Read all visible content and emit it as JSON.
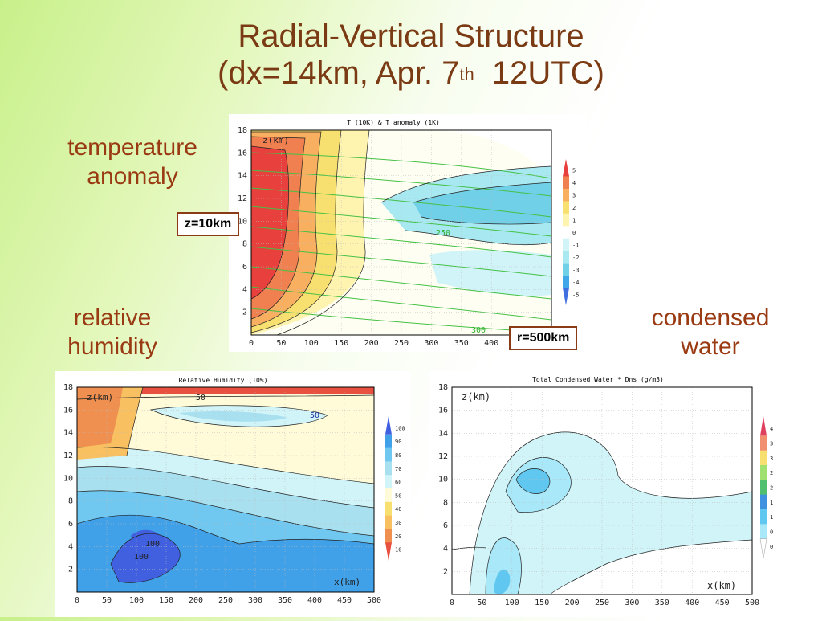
{
  "slide": {
    "title_line1": "Radial-Vertical Structure",
    "title_line2_pre": "(dx=14km, Apr. 7",
    "title_sup": "th",
    "title_line2_post": "  12UTC)",
    "label_temperature": "temperature\nanomaly",
    "label_rh": "relative\nhumidity",
    "label_condensed": "condensed\nwater",
    "tag_z": "z=10km",
    "tag_r": "r=500km"
  },
  "chart_data": [
    {
      "type": "heatmap",
      "title": "T (10K) & T anomaly (1K)",
      "ylabel": "z(km)",
      "xlabel": "",
      "x_ticks": [
        "0",
        "50",
        "100",
        "150",
        "200",
        "250",
        "300",
        "350",
        "400"
      ],
      "y_ticks": [
        "2",
        "4",
        "6",
        "8",
        "10",
        "12",
        "14",
        "16",
        "18"
      ],
      "xlim": [
        0,
        500
      ],
      "ylim": [
        0,
        18
      ],
      "grid": true,
      "contour_labels": [
        "250",
        "300"
      ],
      "colorbar": [
        "5",
        "4",
        "3",
        "2",
        "1",
        "0",
        "-1",
        "-2",
        "-3",
        "-4",
        "-5"
      ],
      "colors": [
        "#e8403c",
        "#f08050",
        "#f8b060",
        "#f8e070",
        "#fff3b0",
        "#ffffff",
        "#d0f4f8",
        "#a8e8f0",
        "#70d0e8",
        "#40a8e8",
        "#4070e0"
      ]
    },
    {
      "type": "heatmap",
      "title": "Relative Humidity (10%)",
      "ylabel": "z(km)",
      "xlabel": "x(km)",
      "x_ticks": [
        "0",
        "50",
        "100",
        "150",
        "200",
        "250",
        "300",
        "350",
        "400",
        "450",
        "500"
      ],
      "y_ticks": [
        "2",
        "4",
        "6",
        "8",
        "10",
        "12",
        "14",
        "16",
        "18"
      ],
      "xlim": [
        0,
        500
      ],
      "ylim": [
        0,
        18
      ],
      "grid": true,
      "contour_labels": [
        "50",
        "50",
        "100",
        "100"
      ],
      "colorbar": [
        "100",
        "90",
        "80",
        "70",
        "60",
        "50",
        "40",
        "30",
        "20",
        "10"
      ],
      "colors": [
        "#4060e0",
        "#40a0e8",
        "#70c8f0",
        "#a8e0f0",
        "#d0f4f8",
        "#fffbd8",
        "#f8e070",
        "#f8c060",
        "#f09050",
        "#e85040"
      ]
    },
    {
      "type": "heatmap",
      "title": "Total Condensed Water * Dns (g/m3)",
      "ylabel": "z(km)",
      "xlabel": "x(km)",
      "x_ticks": [
        "0",
        "50",
        "100",
        "150",
        "200",
        "250",
        "300",
        "350",
        "400",
        "450",
        "500"
      ],
      "y_ticks": [
        "2",
        "4",
        "6",
        "8",
        "10",
        "12",
        "14",
        "16",
        "18"
      ],
      "xlim": [
        0,
        500
      ],
      "ylim": [
        0,
        18
      ],
      "grid": true,
      "colorbar": [
        "4",
        "3.5",
        "3",
        "2.5",
        "2",
        "1.5",
        "1",
        "0.5",
        "0.1"
      ],
      "colors": [
        "#e04060",
        "#f09070",
        "#f8e070",
        "#a0e070",
        "#50c070",
        "#4090e0",
        "#60c8f0",
        "#a8e8f8",
        "#ffffff"
      ]
    }
  ]
}
